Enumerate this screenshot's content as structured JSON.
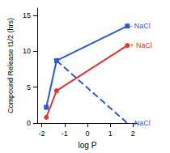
{
  "chart_data": {
    "type": "line",
    "xlabel": "log P",
    "ylabel": "Compound Release t1/2 (hrs)",
    "x": [
      -1.8,
      -1.35,
      1.75
    ],
    "series": [
      {
        "name": "- NaCl",
        "color": "#2a5bd7",
        "marker": "square",
        "line_style": "solid",
        "values": [
          2.2,
          8.7,
          13.5
        ]
      },
      {
        "name": "+ NaCl",
        "color": "#e8322b",
        "marker": "circle",
        "line_style": "solid",
        "values": [
          0.8,
          4.5,
          10.8
        ]
      },
      {
        "name": "- NaCl",
        "color": "#2a5bd7",
        "marker": "none",
        "line_style": "dashed",
        "values": [
          null,
          8.7,
          0
        ]
      }
    ],
    "xlim": [
      -2.2,
      2.2
    ],
    "xticks": [
      -2,
      -1,
      0,
      1,
      2
    ],
    "ylim": [
      0,
      16
    ],
    "yticks": [
      0,
      5,
      10,
      15
    ],
    "grid": false
  }
}
